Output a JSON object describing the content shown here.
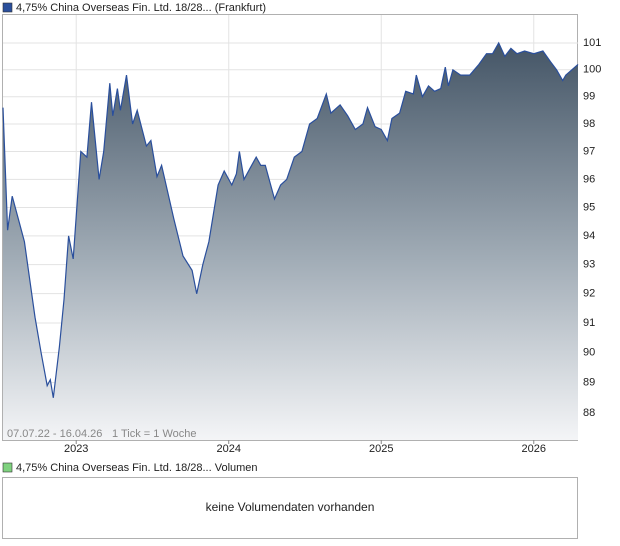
{
  "chart_data": {
    "type": "area",
    "series": [
      {
        "name": "4,75% China Overseas Fin. Ltd. 18/28... (Frankfurt)",
        "color": "#2a4f9c",
        "values": [
          98.6,
          94.2,
          95.4,
          94.6,
          93.8,
          91.2,
          90.0,
          88.9,
          89.1,
          88.5,
          90.2,
          91.8,
          94.0,
          93.2,
          97.0,
          96.8,
          98.8,
          96.0,
          97.0,
          99.5,
          98.3,
          99.3,
          98.5,
          99.8,
          98.0,
          98.5,
          97.2,
          97.4,
          96.1,
          96.5,
          94.6,
          93.3,
          92.8,
          92.0,
          93.0,
          93.8,
          95.8,
          96.3,
          95.8,
          96.2,
          97.0,
          96.0,
          96.4,
          96.8,
          96.5,
          96.5,
          95.3,
          95.8,
          96.0,
          96.8,
          97.0,
          98.0,
          98.2,
          99.1,
          98.4,
          98.7,
          98.3,
          97.8,
          98.0,
          98.6,
          97.9,
          97.8,
          97.4,
          98.2,
          98.4,
          99.2,
          99.1,
          99.8,
          99.0,
          99.4,
          99.2,
          99.3,
          100.1,
          99.4,
          100.0,
          99.8,
          99.8,
          100.2,
          100.6,
          100.6,
          101.0,
          100.5,
          100.8,
          100.6,
          100.7,
          100.6,
          100.7,
          100.3,
          100.0,
          99.6,
          99.8,
          100.2
        ]
      }
    ],
    "x": [
      2022.52,
      2022.55,
      2022.58,
      2022.62,
      2022.66,
      2022.73,
      2022.77,
      2022.81,
      2022.83,
      2022.85,
      2022.89,
      2022.92,
      2022.95,
      2022.98,
      2023.03,
      2023.07,
      2023.1,
      2023.15,
      2023.18,
      2023.22,
      2023.24,
      2023.27,
      2023.29,
      2023.33,
      2023.37,
      2023.4,
      2023.46,
      2023.49,
      2023.53,
      2023.56,
      2023.64,
      2023.7,
      2023.76,
      2023.79,
      2023.83,
      2023.87,
      2023.93,
      2023.97,
      2024.02,
      2024.05,
      2024.07,
      2024.1,
      2024.14,
      2024.18,
      2024.21,
      2024.24,
      2024.3,
      2024.34,
      2024.38,
      2024.43,
      2024.48,
      2024.53,
      2024.58,
      2024.64,
      2024.67,
      2024.73,
      2024.78,
      2024.83,
      2024.88,
      2024.91,
      2024.96,
      2025.0,
      2025.04,
      2025.07,
      2025.12,
      2025.16,
      2025.21,
      2025.23,
      2025.27,
      2025.31,
      2025.35,
      2025.39,
      2025.42,
      2025.44,
      2025.47,
      2025.52,
      2025.58,
      2025.64,
      2025.69,
      2025.73,
      2025.77,
      2025.81,
      2025.85,
      2025.89,
      2025.94,
      2026.0,
      2026.06,
      2026.11,
      2026.15,
      2026.19,
      2026.21,
      2026.29
    ],
    "xlim": [
      2022.52,
      2026.29
    ],
    "xticks": [
      2023,
      2024,
      2025,
      2026
    ],
    "ylim": [
      87.12,
      102.06
    ],
    "yticks": [
      88,
      89,
      90,
      91,
      92,
      93,
      94,
      95,
      96,
      97,
      98,
      99,
      100,
      101
    ],
    "log": true,
    "grid": true,
    "date_range": "07.07.22 - 16.04.26",
    "tick_note": "1 Tick = 1 Woche"
  },
  "volume_panel": {
    "legend": "4,75% China Overseas Fin. Ltd. 18/28... Volumen",
    "color": "#7fd27f",
    "message": "keine Volumendaten vorhanden"
  }
}
